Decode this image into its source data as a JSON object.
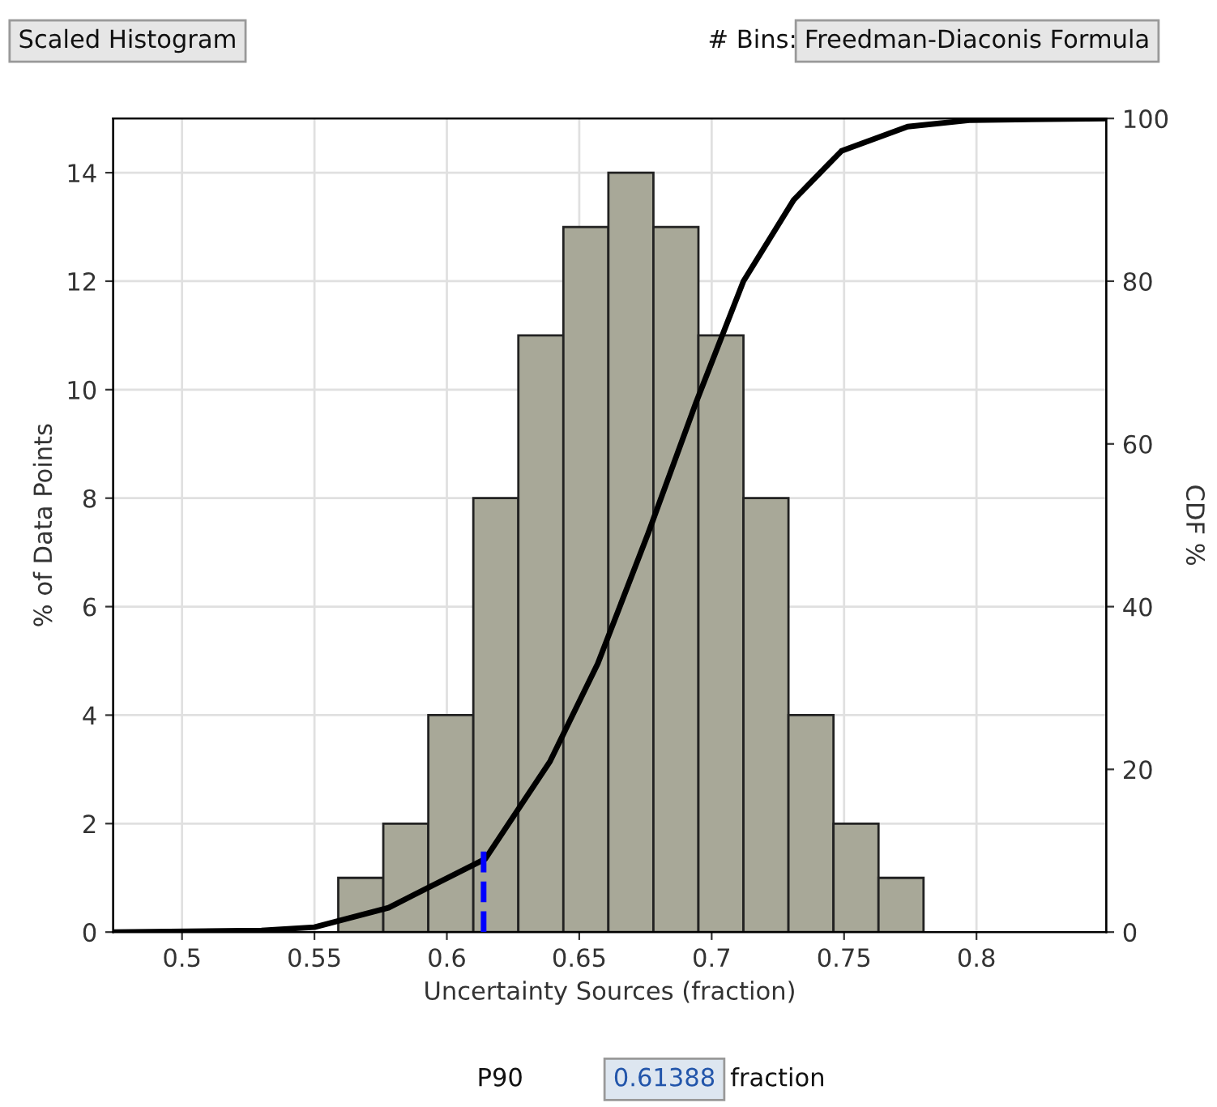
{
  "chart_data": {
    "type": "histogram",
    "xlabel": "Uncertainty Sources (fraction)",
    "ylabel": "% of Data Points",
    "y2label": "CDF %",
    "bins": [
      0.559,
      0.576,
      0.593,
      0.61,
      0.627,
      0.644,
      0.661,
      0.678,
      0.695,
      0.712,
      0.729,
      0.746,
      0.763,
      0.78
    ],
    "values": [
      1,
      2,
      4,
      8,
      11,
      13,
      14,
      13,
      11,
      8,
      4,
      2,
      1
    ],
    "color": "#a8a898",
    "series": [
      {
        "type": "line",
        "axis": "y2",
        "color": "#000000",
        "x": [
          0.474,
          0.53,
          0.55,
          0.578,
          0.6145,
          0.639,
          0.657,
          0.676,
          0.694,
          0.712,
          0.731,
          0.749,
          0.774,
          0.798,
          0.849
        ],
        "values": [
          0,
          0.2,
          0.6,
          3,
          9,
          21,
          33,
          49,
          65,
          80,
          90,
          96,
          99,
          99.8,
          100
        ]
      },
      {
        "type": "line",
        "axis": "y2",
        "color": "#0000ff",
        "line_style": "dashed",
        "x": [
          0.61388,
          0.61388
        ],
        "values": [
          0,
          10
        ]
      }
    ],
    "xlim": [
      0.474,
      0.849
    ],
    "xticks": [
      0.5,
      0.55,
      0.6,
      0.65,
      0.7,
      0.75,
      0.8
    ],
    "ylim": [
      0,
      15
    ],
    "yticks": [
      0,
      2,
      4,
      6,
      8,
      10,
      12,
      14
    ],
    "y2lim": [
      0,
      100
    ],
    "y2ticks": [
      0,
      20,
      40,
      60,
      80,
      100
    ],
    "grid": true,
    "annotations": [
      "Scaled Histogram",
      "# Bins:",
      "Freedman-Diaconis Formula",
      "P90",
      "0.61388",
      "fraction"
    ]
  }
}
